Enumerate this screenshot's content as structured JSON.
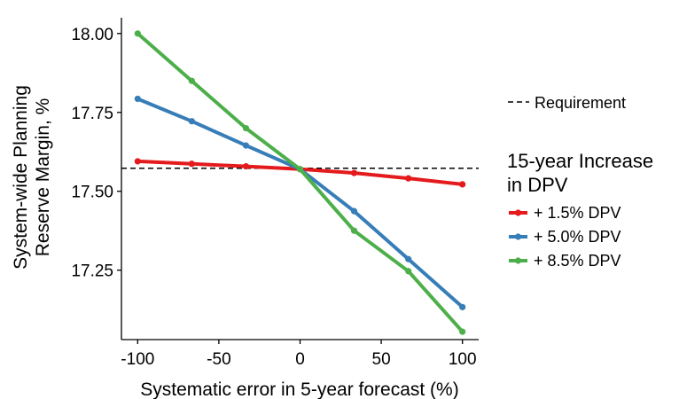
{
  "chart_data": {
    "type": "line",
    "xlabel": "Systematic error in 5-year forecast (%)",
    "ylabel_line1": "System-wide Planning",
    "ylabel_line2": "Reserve Margin, %",
    "xlim": [
      -110,
      110
    ],
    "ylim": [
      17.03,
      18.05
    ],
    "x_ticks": [
      -100,
      -50,
      0,
      50,
      100
    ],
    "x_tick_labels": [
      "-100",
      "-50",
      "0",
      "50",
      "100"
    ],
    "y_ticks": [
      18.0,
      17.75,
      17.5,
      17.25
    ],
    "y_tick_labels": [
      "18.00",
      "17.75",
      "17.50",
      "17.25"
    ],
    "grid": false,
    "requirement": {
      "label": "Requirement",
      "y": 17.573
    },
    "legend": {
      "title_line1": "15-year Increase",
      "title_line2": "in DPV",
      "placement": "right"
    },
    "x": [
      -100,
      -66.7,
      -33.3,
      0,
      33.3,
      66.7,
      100
    ],
    "series": [
      {
        "name": "+ 1.5% DPV",
        "color": "#e41a1c",
        "values": [
          17.595,
          17.587,
          17.579,
          17.57,
          17.558,
          17.541,
          17.522
        ]
      },
      {
        "name": "+ 5.0% DPV",
        "color": "#377eb8",
        "values": [
          17.793,
          17.722,
          17.645,
          17.57,
          17.437,
          17.285,
          17.133
        ]
      },
      {
        "name": "+ 8.5% DPV",
        "color": "#4daf4a",
        "values": [
          18.0,
          17.85,
          17.7,
          17.57,
          17.375,
          17.247,
          17.055
        ]
      }
    ]
  }
}
